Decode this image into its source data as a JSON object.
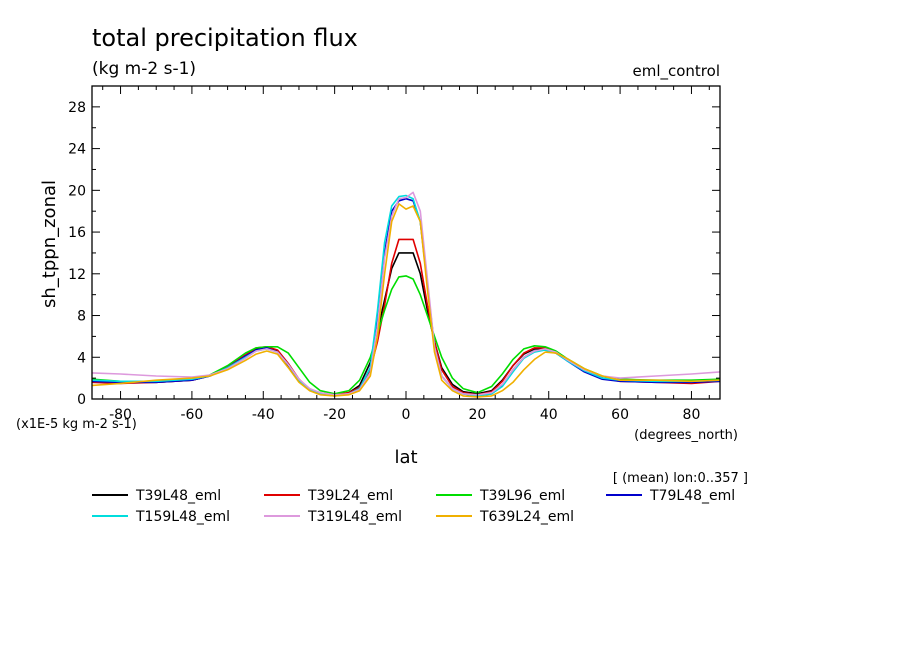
{
  "chart_data": {
    "type": "line",
    "title": "total precipitation flux",
    "subtitle": "(kg m-2 s-1)",
    "experiment": "eml_control",
    "ylabel": "sh_tppn_zonal",
    "xlabel": "lat",
    "y_scale_note": "(x1E-5 kg m-2 s-1)",
    "x_units": "(degrees_north)",
    "note": "[ (mean) lon:0..357 ]",
    "xlim": [
      -88,
      88
    ],
    "ylim": [
      0,
      30
    ],
    "xticks": [
      -80,
      -60,
      -40,
      -20,
      0,
      20,
      40,
      60,
      80
    ],
    "yticks": [
      0,
      4,
      8,
      12,
      16,
      20,
      24,
      28
    ],
    "xtick_labels": [
      "-80",
      "-60",
      "-40",
      "-20",
      "0",
      "20",
      "40",
      "60",
      "80"
    ],
    "ytick_labels": [
      "0",
      "4",
      "8",
      "12",
      "16",
      "20",
      "24",
      "28"
    ],
    "x": [
      -88,
      -80,
      -70,
      -60,
      -55,
      -50,
      -45,
      -42,
      -39,
      -36,
      -33,
      -30,
      -27,
      -24,
      -20,
      -16,
      -13,
      -10,
      -8,
      -6,
      -4,
      -2,
      0,
      2,
      4,
      6,
      8,
      10,
      13,
      16,
      20,
      24,
      27,
      30,
      33,
      36,
      39,
      42,
      45,
      50,
      55,
      60,
      70,
      80,
      88
    ],
    "series": [
      {
        "name": "T39L48_eml",
        "color": "#000000",
        "values": [
          1.8,
          1.6,
          1.6,
          1.8,
          2.2,
          3.0,
          4.2,
          4.8,
          5.0,
          4.6,
          3.2,
          1.8,
          0.9,
          0.5,
          0.4,
          0.6,
          1.3,
          3.5,
          6.5,
          9.5,
          12.5,
          14.0,
          14.0,
          14.0,
          12.0,
          8.5,
          5.5,
          3.0,
          1.4,
          0.7,
          0.5,
          0.8,
          1.8,
          3.2,
          4.3,
          4.8,
          4.8,
          4.4,
          3.8,
          2.7,
          2.0,
          1.8,
          1.7,
          1.7,
          1.8
        ]
      },
      {
        "name": "T39L24_eml",
        "color": "#e00000",
        "values": [
          1.6,
          1.5,
          1.6,
          1.8,
          2.2,
          3.1,
          4.2,
          4.9,
          5.0,
          4.7,
          3.4,
          1.9,
          0.9,
          0.5,
          0.4,
          0.6,
          1.1,
          2.8,
          5.5,
          9.0,
          13.0,
          15.3,
          15.3,
          15.3,
          13.0,
          9.0,
          5.5,
          2.8,
          1.2,
          0.6,
          0.4,
          0.7,
          1.7,
          3.2,
          4.4,
          4.9,
          4.9,
          4.5,
          3.8,
          2.8,
          2.0,
          1.7,
          1.6,
          1.5,
          1.7
        ]
      },
      {
        "name": "T39L96_eml",
        "color": "#00dd00",
        "values": [
          1.9,
          1.7,
          1.7,
          1.9,
          2.3,
          3.2,
          4.4,
          4.9,
          5.0,
          5.0,
          4.4,
          3.0,
          1.6,
          0.8,
          0.5,
          0.8,
          1.8,
          4.0,
          6.3,
          8.5,
          10.5,
          11.7,
          11.8,
          11.5,
          10.0,
          8.0,
          6.0,
          4.0,
          2.0,
          1.0,
          0.6,
          1.2,
          2.4,
          3.8,
          4.8,
          5.1,
          5.0,
          4.6,
          3.9,
          2.9,
          2.2,
          1.9,
          1.8,
          1.8,
          1.9
        ]
      },
      {
        "name": "T79L48_eml",
        "color": "#0000cc",
        "values": [
          1.7,
          1.6,
          1.6,
          1.8,
          2.2,
          3.0,
          4.1,
          4.7,
          4.9,
          4.5,
          3.3,
          1.8,
          0.9,
          0.5,
          0.3,
          0.5,
          1.0,
          3.0,
          8.0,
          14.0,
          18.0,
          19.0,
          19.2,
          19.0,
          17.0,
          11.0,
          5.0,
          2.2,
          1.0,
          0.5,
          0.3,
          0.5,
          1.3,
          2.8,
          4.0,
          4.6,
          4.7,
          4.4,
          3.7,
          2.6,
          1.9,
          1.7,
          1.6,
          1.6,
          1.7
        ]
      },
      {
        "name": "T159L48_eml",
        "color": "#00dddd",
        "values": [
          1.8,
          1.7,
          1.7,
          1.9,
          2.2,
          3.0,
          4.0,
          4.6,
          4.8,
          4.5,
          3.3,
          1.8,
          0.9,
          0.5,
          0.3,
          0.5,
          1.0,
          3.0,
          8.5,
          15.0,
          18.5,
          19.4,
          19.5,
          19.2,
          17.0,
          11.0,
          5.0,
          2.2,
          1.0,
          0.5,
          0.3,
          0.5,
          1.2,
          2.6,
          3.9,
          4.5,
          4.7,
          4.4,
          3.7,
          2.7,
          2.0,
          1.8,
          1.7,
          1.7,
          1.8
        ]
      },
      {
        "name": "T319L48_eml",
        "color": "#dd99dd",
        "values": [
          2.5,
          2.4,
          2.2,
          2.1,
          2.3,
          2.9,
          3.9,
          4.6,
          4.8,
          4.5,
          3.3,
          1.9,
          1.0,
          0.6,
          0.4,
          0.5,
          0.9,
          2.5,
          7.0,
          13.5,
          17.5,
          19.2,
          19.3,
          19.8,
          18.0,
          11.5,
          5.0,
          2.2,
          1.0,
          0.5,
          0.4,
          0.6,
          1.4,
          2.8,
          4.0,
          4.6,
          4.8,
          4.5,
          3.8,
          2.8,
          2.2,
          2.0,
          2.2,
          2.4,
          2.6
        ]
      },
      {
        "name": "T639L24_eml",
        "color": "#f0b000",
        "values": [
          1.3,
          1.5,
          1.8,
          2.0,
          2.2,
          2.8,
          3.7,
          4.3,
          4.6,
          4.3,
          3.0,
          1.6,
          0.8,
          0.4,
          0.3,
          0.4,
          0.8,
          2.2,
          6.0,
          12.0,
          17.0,
          18.7,
          18.2,
          18.5,
          17.0,
          10.5,
          4.5,
          1.8,
          0.8,
          0.3,
          0.2,
          0.3,
          0.8,
          1.6,
          2.8,
          3.8,
          4.5,
          4.4,
          3.9,
          2.9,
          2.2,
          1.8,
          1.8,
          1.7,
          1.8
        ]
      }
    ]
  }
}
